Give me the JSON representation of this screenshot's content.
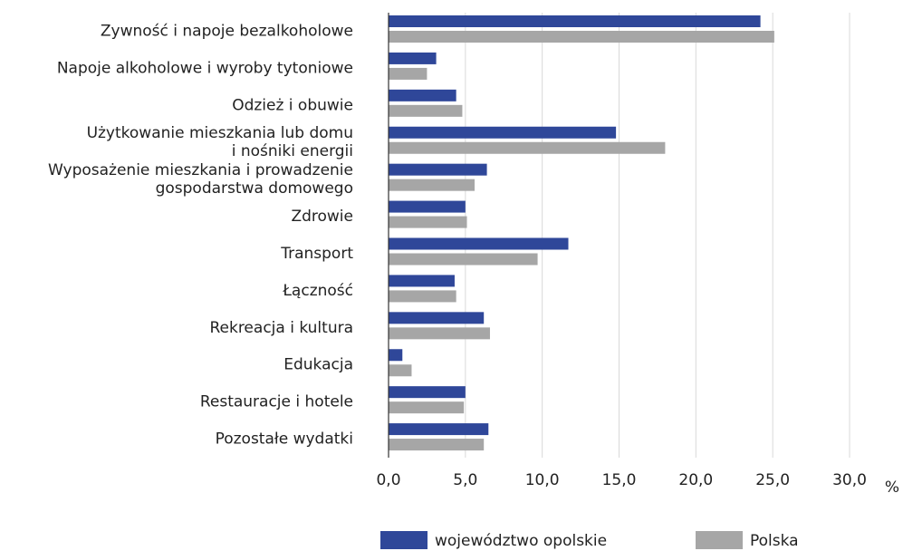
{
  "chart_data": {
    "type": "bar",
    "orientation": "horizontal",
    "categories": [
      "Zywność i napoje bezalkoholowe",
      "Napoje alkoholowe i wyroby tytoniowe",
      "Odzież i obuwie",
      "Użytkowanie mieszkania lub domu\ni nośniki energii",
      "Wyposażenie mieszkania i prowadzenie\ngospodarstwa domowego",
      "Zdrowie",
      "Transport",
      "Łączność",
      "Rekreacja i kultura",
      "Edukacja",
      "Restauracje i hotele",
      "Pozostałe wydatki"
    ],
    "series": [
      {
        "name": "województwo opolskie",
        "color": "#2f4799",
        "values": [
          24.2,
          3.1,
          4.4,
          14.8,
          6.4,
          5.0,
          11.7,
          4.3,
          6.2,
          0.9,
          5.0,
          6.5
        ]
      },
      {
        "name": "Polska",
        "color": "#a6a6a6",
        "values": [
          25.1,
          2.5,
          4.8,
          18.0,
          5.6,
          5.1,
          9.7,
          4.4,
          6.6,
          1.5,
          4.9,
          6.2
        ]
      }
    ],
    "xlim": [
      0,
      30
    ],
    "xticks": [
      {
        "value": 0,
        "label": "0,0"
      },
      {
        "value": 5,
        "label": "5,0"
      },
      {
        "value": 10,
        "label": "10,0"
      },
      {
        "value": 15,
        "label": "15,0"
      },
      {
        "value": 20,
        "label": "20,0"
      },
      {
        "value": 25,
        "label": "25,0"
      },
      {
        "value": 30,
        "label": "30,0"
      }
    ],
    "x_label": "%",
    "grid": true,
    "legend": "bottom"
  }
}
